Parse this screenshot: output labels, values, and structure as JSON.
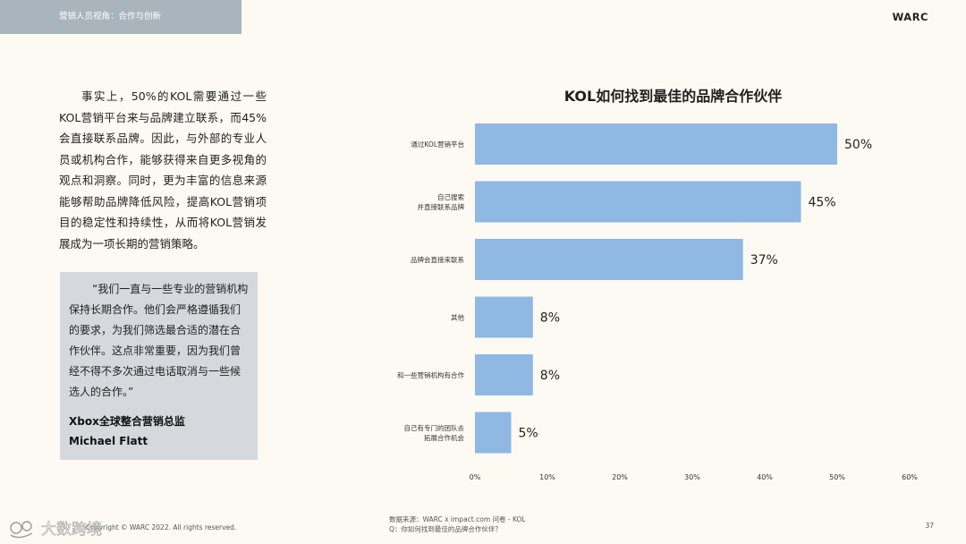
{
  "header": {
    "tab_label": "营销人员视角：合作与创新",
    "brand": "WARC"
  },
  "body_paragraph": "事实上，50%的KOL需要通过一些KOL营销平台来与品牌建立联系，而45%会直接联系品牌。因此，与外部的专业人员或机构合作，能够获得来自更多视角的观点和洞察。同时，更为丰富的信息来源能够帮助品牌降低风险，提高KOL营销项目的稳定性和持续性，从而将KOL营销发展成为一项长期的营销策略。",
  "quote": {
    "text": "“我们一直与一些专业的营销机构保持长期合作。他们会严格遵循我们的要求，为我们筛选最合适的潜在合作伙伴。这点非常重要，因为我们曾经不得不多次通过电话取消与一些候选人的合作。”",
    "author_title": "Xbox全球整合营销总监",
    "author_name": "Michael Flatt"
  },
  "chart_data": {
    "type": "bar",
    "orientation": "horizontal",
    "title": "KOL如何找到最佳的品牌合作伙伴",
    "categories": [
      [
        "通过KOL营销平台"
      ],
      [
        "自己搜索",
        "并直接联系品牌"
      ],
      [
        "品牌会直接来联系"
      ],
      [
        "其他"
      ],
      [
        "和一些营销机构有合作"
      ],
      [
        "自己有专门的团队去",
        "拓展合作机会"
      ]
    ],
    "values": [
      50,
      45,
      37,
      8,
      8,
      5
    ],
    "value_labels": [
      "50%",
      "45%",
      "37%",
      "8%",
      "8%",
      "5%"
    ],
    "xlim": [
      0,
      60
    ],
    "xticks": [
      "0%",
      "10%",
      "20%",
      "30%",
      "40%",
      "50%",
      "60%"
    ],
    "bar_color": "#8fb8e3",
    "grid": false
  },
  "footer": {
    "copyright": "Copyright © WARC 2022. All rights reserved.",
    "source_line1": "数据来源：WARC x impact.com 问卷 - KOL",
    "source_line2": "Q：你如何找到最佳的品牌合作伙伴？",
    "page_number": "37",
    "watermark": "大数跨境"
  }
}
